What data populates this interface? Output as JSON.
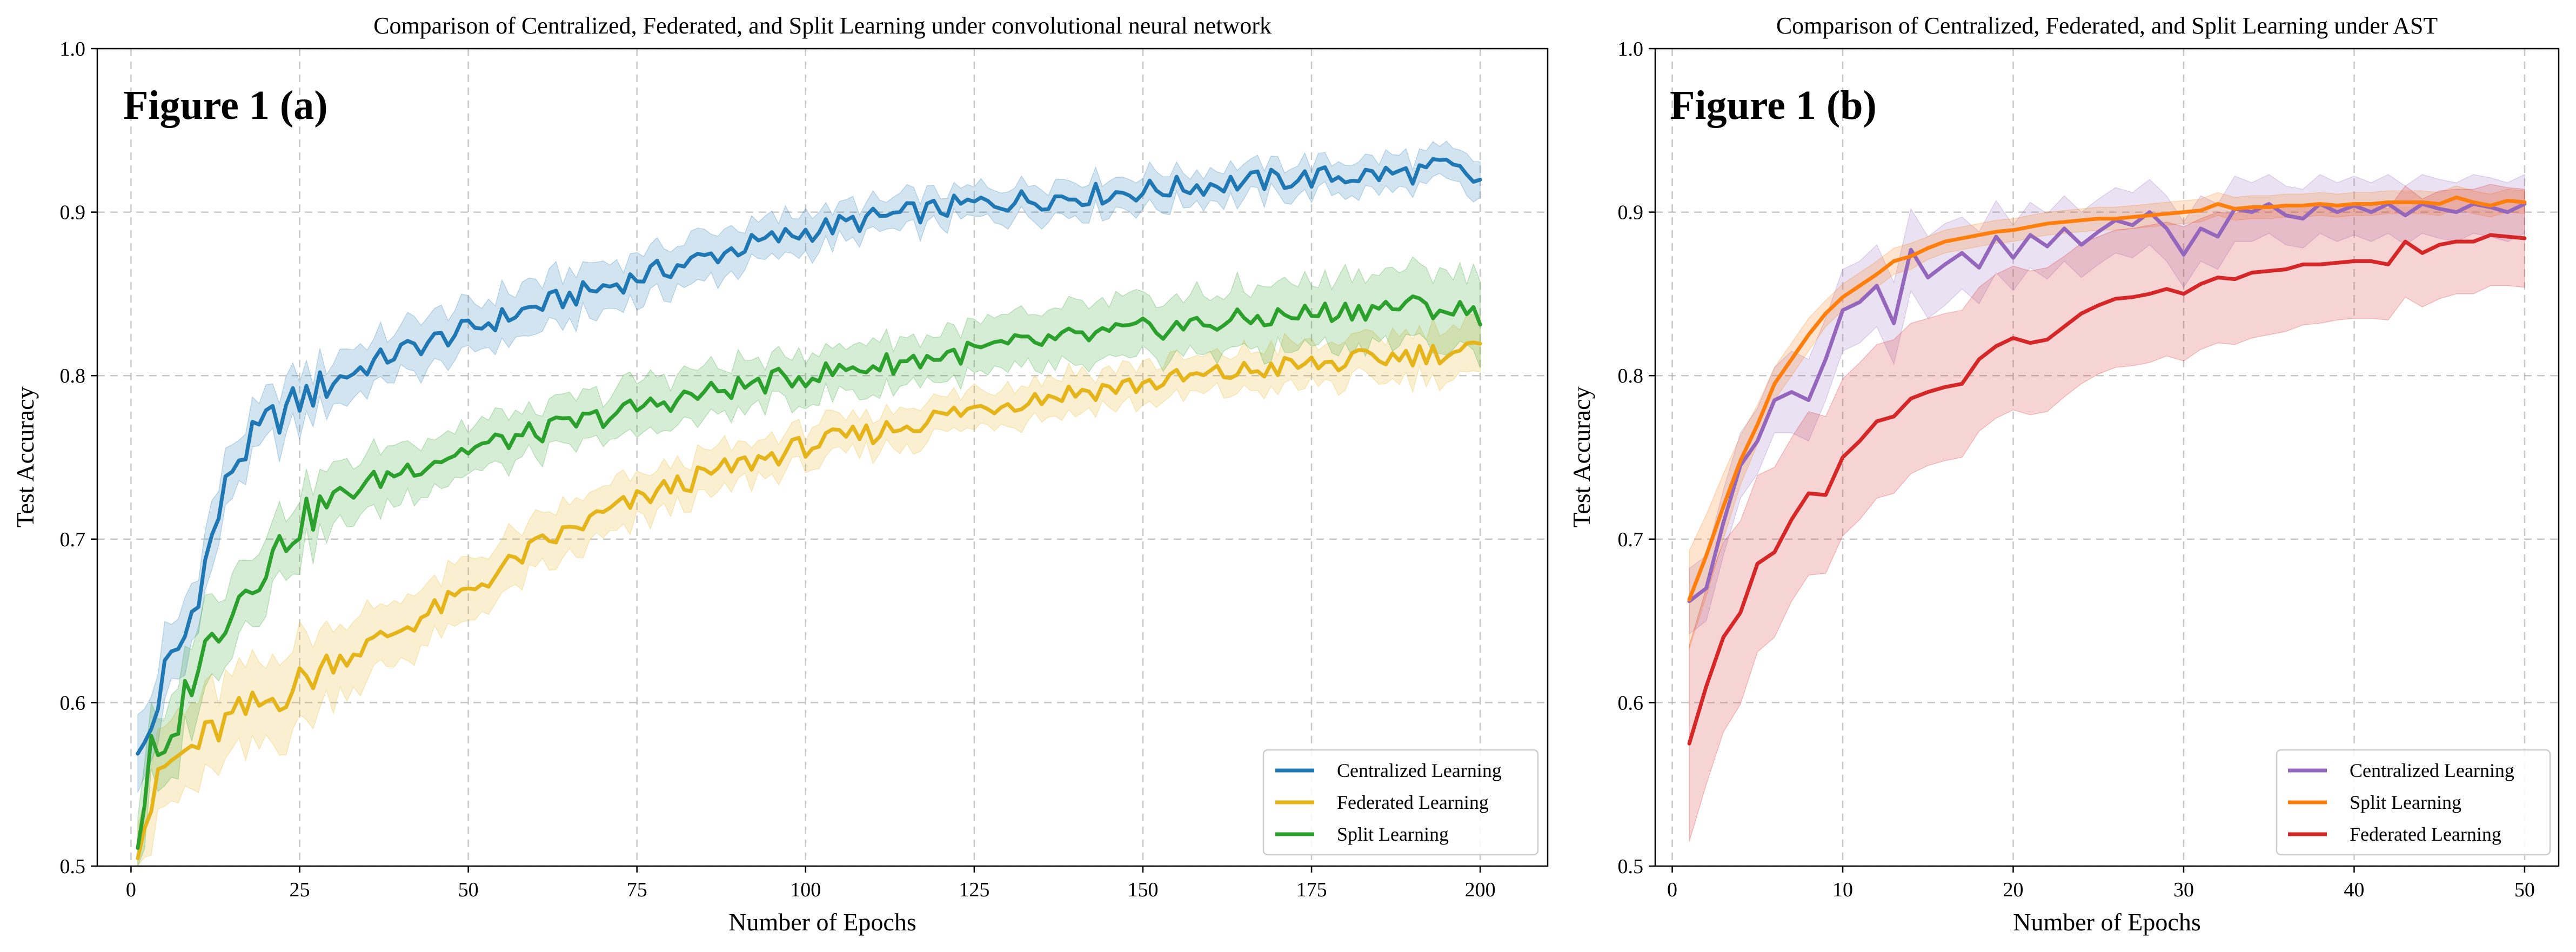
{
  "chart_data": [
    {
      "type": "line",
      "title": "Comparison of Centralized, Federated, and Split Learning under convolutional neural network",
      "annotation": "Figure 1 (a)",
      "xlabel": "Number of Epochs",
      "ylabel": "Test Accuracy",
      "xlim": [
        -5,
        210
      ],
      "ylim": [
        0.5,
        1.0
      ],
      "xticks": [
        0,
        25,
        50,
        75,
        100,
        125,
        150,
        175,
        200
      ],
      "yticks": [
        0.5,
        0.6,
        0.7,
        0.8,
        0.9,
        1.0
      ],
      "grid": true,
      "legend_position": "lower-right",
      "series": [
        {
          "name": "Centralized Learning",
          "color": "#1f77b4",
          "shaded_band": true,
          "keypoints": {
            "x": [
              1,
              3,
              5,
              8,
              10,
              12,
              15,
              20,
              25,
              30,
              40,
              50,
              60,
              75,
              90,
              100,
              110,
              125,
              140,
              150,
              160,
              175,
              190,
              195,
              200
            ],
            "y": [
              0.563,
              0.585,
              0.618,
              0.64,
              0.67,
              0.7,
              0.745,
              0.77,
              0.785,
              0.797,
              0.815,
              0.828,
              0.842,
              0.86,
              0.878,
              0.888,
              0.896,
              0.905,
              0.91,
              0.913,
              0.917,
              0.921,
              0.924,
              0.928,
              0.918
            ],
            "band": [
              0.02,
              0.02,
              0.02,
              0.02,
              0.02,
              0.02,
              0.015,
              0.015,
              0.015,
              0.015,
              0.015,
              0.015,
              0.015,
              0.015,
              0.013,
              0.012,
              0.01,
              0.01,
              0.01,
              0.01,
              0.01,
              0.01,
              0.01,
              0.01,
              0.012
            ]
          }
        },
        {
          "name": "Federated Learning",
          "color": "#e5b41a",
          "shaded_band": true,
          "keypoints": {
            "x": [
              1,
              5,
              10,
              15,
              20,
              25,
              30,
              40,
              50,
              60,
              70,
              80,
              90,
              100,
              110,
              120,
              130,
              140,
              150,
              160,
              170,
              180,
              190,
              200
            ],
            "y": [
              0.515,
              0.56,
              0.575,
              0.59,
              0.6,
              0.612,
              0.625,
              0.645,
              0.668,
              0.695,
              0.715,
              0.732,
              0.745,
              0.757,
              0.765,
              0.775,
              0.784,
              0.79,
              0.795,
              0.8,
              0.805,
              0.808,
              0.813,
              0.816
            ],
            "band": [
              0.02,
              0.025,
              0.025,
              0.025,
              0.025,
              0.025,
              0.022,
              0.02,
              0.018,
              0.016,
              0.015,
              0.013,
              0.012,
              0.012,
              0.012,
              0.012,
              0.012,
              0.012,
              0.012,
              0.012,
              0.013,
              0.013,
              0.014,
              0.015
            ]
          }
        },
        {
          "name": "Split Learning",
          "color": "#2ca02c",
          "shaded_band": true,
          "keypoints": {
            "x": [
              1,
              3,
              5,
              8,
              10,
              15,
              20,
              25,
              30,
              40,
              50,
              60,
              70,
              80,
              90,
              100,
              110,
              120,
              130,
              140,
              150,
              160,
              170,
              180,
              190,
              200
            ],
            "y": [
              0.513,
              0.57,
              0.56,
              0.605,
              0.625,
              0.66,
              0.685,
              0.71,
              0.725,
              0.742,
              0.755,
              0.765,
              0.775,
              0.785,
              0.793,
              0.8,
              0.806,
              0.812,
              0.818,
              0.823,
              0.828,
              0.832,
              0.836,
              0.84,
              0.843,
              0.838
            ],
            "band": [
              0.02,
              0.025,
              0.025,
              0.025,
              0.025,
              0.022,
              0.02,
              0.02,
              0.018,
              0.016,
              0.015,
              0.015,
              0.015,
              0.015,
              0.015,
              0.015,
              0.015,
              0.015,
              0.016,
              0.017,
              0.018,
              0.019,
              0.02,
              0.021,
              0.022,
              0.023
            ]
          }
        }
      ]
    },
    {
      "type": "line",
      "title": "Comparison of Centralized, Federated, and Split Learning under AST",
      "annotation": "Figure 1 (b)",
      "xlabel": "Number of Epochs",
      "ylabel": "Test Accuracy",
      "xlim": [
        -1,
        52
      ],
      "ylim": [
        0.5,
        1.0
      ],
      "xticks": [
        0,
        10,
        20,
        30,
        40,
        50
      ],
      "yticks": [
        0.5,
        0.6,
        0.7,
        0.8,
        0.9,
        1.0
      ],
      "grid": true,
      "legend_position": "lower-right",
      "series": [
        {
          "name": "Centralized Learning",
          "color": "#9467bd",
          "shaded_band": true,
          "x": [
            1,
            2,
            3,
            4,
            5,
            6,
            7,
            8,
            9,
            10,
            11,
            12,
            13,
            14,
            15,
            16,
            17,
            18,
            19,
            20,
            21,
            22,
            23,
            24,
            25,
            26,
            27,
            28,
            29,
            30,
            31,
            32,
            33,
            34,
            35,
            36,
            37,
            38,
            39,
            40,
            41,
            42,
            43,
            44,
            45,
            46,
            47,
            48,
            49,
            50
          ],
          "y": [
            0.662,
            0.67,
            0.71,
            0.745,
            0.76,
            0.785,
            0.79,
            0.785,
            0.81,
            0.84,
            0.845,
            0.855,
            0.832,
            0.877,
            0.86,
            0.868,
            0.875,
            0.866,
            0.885,
            0.872,
            0.886,
            0.879,
            0.89,
            0.88,
            0.888,
            0.895,
            0.892,
            0.9,
            0.89,
            0.874,
            0.89,
            0.885,
            0.902,
            0.9,
            0.905,
            0.898,
            0.896,
            0.905,
            0.9,
            0.904,
            0.9,
            0.905,
            0.898,
            0.905,
            0.902,
            0.9,
            0.905,
            0.903,
            0.9,
            0.905
          ],
          "band": [
            0.02,
            0.02,
            0.02,
            0.02,
            0.02,
            0.02,
            0.025,
            0.025,
            0.025,
            0.025,
            0.025,
            0.025,
            0.025,
            0.025,
            0.025,
            0.025,
            0.022,
            0.022,
            0.022,
            0.02,
            0.02,
            0.02,
            0.02,
            0.02,
            0.02,
            0.02,
            0.02,
            0.02,
            0.02,
            0.02,
            0.02,
            0.02,
            0.02,
            0.018,
            0.018,
            0.018,
            0.018,
            0.018,
            0.018,
            0.018,
            0.018,
            0.018,
            0.018,
            0.018,
            0.018,
            0.018,
            0.018,
            0.018,
            0.018,
            0.018
          ]
        },
        {
          "name": "Split Learning",
          "color": "#ff7f0e",
          "shaded_band": true,
          "x": [
            1,
            2,
            3,
            4,
            5,
            6,
            7,
            8,
            9,
            10,
            11,
            12,
            13,
            14,
            15,
            16,
            17,
            18,
            19,
            20,
            21,
            22,
            23,
            24,
            25,
            26,
            27,
            28,
            29,
            30,
            31,
            32,
            33,
            34,
            35,
            36,
            37,
            38,
            39,
            40,
            41,
            42,
            43,
            44,
            45,
            46,
            47,
            48,
            49,
            50
          ],
          "y": [
            0.663,
            0.69,
            0.72,
            0.748,
            0.77,
            0.795,
            0.81,
            0.825,
            0.838,
            0.848,
            0.855,
            0.862,
            0.87,
            0.873,
            0.878,
            0.882,
            0.884,
            0.886,
            0.888,
            0.889,
            0.891,
            0.893,
            0.894,
            0.895,
            0.896,
            0.896,
            0.897,
            0.898,
            0.899,
            0.9,
            0.901,
            0.905,
            0.902,
            0.903,
            0.903,
            0.904,
            0.904,
            0.905,
            0.904,
            0.905,
            0.905,
            0.906,
            0.906,
            0.906,
            0.905,
            0.909,
            0.906,
            0.904,
            0.907,
            0.906
          ],
          "band": [
            0.03,
            0.025,
            0.02,
            0.015,
            0.012,
            0.01,
            0.01,
            0.01,
            0.008,
            0.008,
            0.008,
            0.008,
            0.008,
            0.008,
            0.007,
            0.007,
            0.007,
            0.007,
            0.007,
            0.007,
            0.007,
            0.007,
            0.007,
            0.007,
            0.007,
            0.007,
            0.007,
            0.007,
            0.007,
            0.007,
            0.007,
            0.007,
            0.007,
            0.007,
            0.007,
            0.007,
            0.007,
            0.007,
            0.007,
            0.007,
            0.007,
            0.007,
            0.007,
            0.007,
            0.007,
            0.007,
            0.007,
            0.007,
            0.007,
            0.007
          ]
        },
        {
          "name": "Federated Learning",
          "color": "#d62728",
          "shaded_band": true,
          "x": [
            1,
            2,
            3,
            4,
            5,
            6,
            7,
            8,
            9,
            10,
            11,
            12,
            13,
            14,
            15,
            16,
            17,
            18,
            19,
            20,
            21,
            22,
            23,
            24,
            25,
            26,
            27,
            28,
            29,
            30,
            31,
            32,
            33,
            34,
            35,
            36,
            37,
            38,
            39,
            40,
            41,
            42,
            43,
            44,
            45,
            46,
            47,
            48,
            49,
            50
          ],
          "y": [
            0.575,
            0.61,
            0.64,
            0.655,
            0.685,
            0.692,
            0.712,
            0.728,
            0.727,
            0.75,
            0.76,
            0.772,
            0.775,
            0.786,
            0.79,
            0.793,
            0.795,
            0.81,
            0.818,
            0.823,
            0.82,
            0.822,
            0.83,
            0.838,
            0.843,
            0.847,
            0.848,
            0.85,
            0.853,
            0.85,
            0.856,
            0.86,
            0.859,
            0.863,
            0.864,
            0.865,
            0.868,
            0.868,
            0.869,
            0.87,
            0.87,
            0.868,
            0.882,
            0.875,
            0.88,
            0.882,
            0.882,
            0.886,
            0.885,
            0.884
          ],
          "band": [
            0.06,
            0.06,
            0.058,
            0.056,
            0.054,
            0.052,
            0.05,
            0.05,
            0.048,
            0.048,
            0.048,
            0.047,
            0.047,
            0.046,
            0.045,
            0.045,
            0.045,
            0.044,
            0.044,
            0.044,
            0.044,
            0.044,
            0.043,
            0.043,
            0.042,
            0.042,
            0.042,
            0.042,
            0.041,
            0.041,
            0.04,
            0.04,
            0.04,
            0.04,
            0.039,
            0.038,
            0.037,
            0.036,
            0.035,
            0.035,
            0.035,
            0.034,
            0.034,
            0.033,
            0.033,
            0.032,
            0.032,
            0.031,
            0.03,
            0.03
          ]
        }
      ]
    }
  ]
}
